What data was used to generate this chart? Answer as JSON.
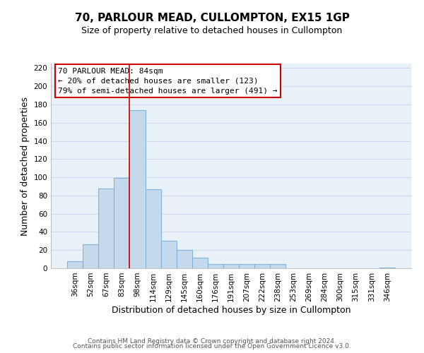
{
  "title": "70, PARLOUR MEAD, CULLOMPTON, EX15 1GP",
  "subtitle": "Size of property relative to detached houses in Cullompton",
  "xlabel": "Distribution of detached houses by size in Cullompton",
  "ylabel": "Number of detached properties",
  "bar_color": "#c5d9ed",
  "bar_edge_color": "#7aafd4",
  "categories": [
    "36sqm",
    "52sqm",
    "67sqm",
    "83sqm",
    "98sqm",
    "114sqm",
    "129sqm",
    "145sqm",
    "160sqm",
    "176sqm",
    "191sqm",
    "207sqm",
    "222sqm",
    "238sqm",
    "253sqm",
    "269sqm",
    "284sqm",
    "300sqm",
    "315sqm",
    "331sqm",
    "346sqm"
  ],
  "values": [
    8,
    26,
    88,
    99,
    174,
    87,
    30,
    20,
    12,
    5,
    5,
    5,
    5,
    5,
    0,
    0,
    0,
    0,
    0,
    0,
    1
  ],
  "vline_index": 4,
  "vline_color": "#cc0000",
  "ylim": [
    0,
    225
  ],
  "yticks": [
    0,
    20,
    40,
    60,
    80,
    100,
    120,
    140,
    160,
    180,
    200,
    220
  ],
  "annotation_title": "70 PARLOUR MEAD: 84sqm",
  "annotation_line1": "← 20% of detached houses are smaller (123)",
  "annotation_line2": "79% of semi-detached houses are larger (491) →",
  "annotation_box_color": "#ffffff",
  "annotation_box_edge_color": "#cc0000",
  "footer_line1": "Contains HM Land Registry data © Crown copyright and database right 2024.",
  "footer_line2": "Contains public sector information licensed under the Open Government Licence v3.0.",
  "background_color": "#ffffff",
  "grid_color": "#ccd9e8",
  "plot_bg_color": "#e8f0f8",
  "title_fontsize": 11,
  "subtitle_fontsize": 9,
  "axis_label_fontsize": 9,
  "tick_fontsize": 7.5,
  "annotation_fontsize": 8,
  "footer_fontsize": 6.5
}
